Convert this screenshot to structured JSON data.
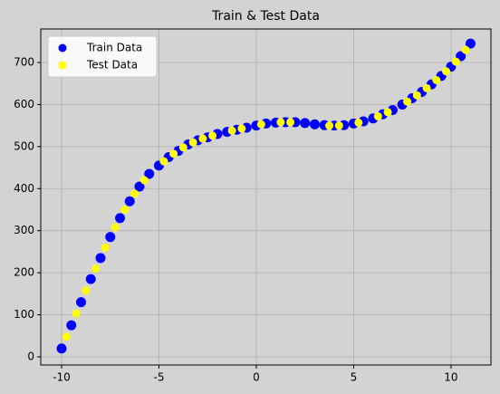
{
  "chart_data": {
    "type": "scatter",
    "title": "Train & Test Data",
    "series": [
      {
        "name": "Train Data",
        "color": "blue",
        "x": [
          -10,
          -9.5,
          -9,
          -8.5,
          -8,
          -7.5,
          -7,
          -6.5,
          -6,
          -5.5,
          -5,
          -4.5,
          -4,
          -3.5,
          -3,
          -2.5,
          -2,
          -1.5,
          -1,
          -0.5,
          0,
          0.5,
          1,
          1.5,
          2,
          2.5,
          3,
          3.5,
          4,
          4.5,
          5,
          5.5,
          6,
          6.5,
          7,
          7.5,
          8,
          8.5,
          9,
          9.5,
          10,
          10.5,
          11
        ],
        "values": [
          20,
          75,
          130,
          185,
          235,
          285,
          330,
          370,
          405,
          435,
          455,
          475,
          490,
          505,
          515,
          522,
          530,
          535,
          540,
          545,
          550,
          555,
          557,
          558,
          558,
          556,
          553,
          551,
          550,
          551,
          555,
          560,
          567,
          577,
          587,
          600,
          615,
          630,
          648,
          668,
          690,
          715,
          745
        ]
      },
      {
        "name": "Test Data",
        "color": "yellow",
        "x": [
          -9.75,
          -9.25,
          -8.75,
          -8.25,
          -7.75,
          -7.25,
          -6.75,
          -6.25,
          -5.75,
          -4.75,
          -4.25,
          -3.75,
          -3.25,
          -2.75,
          -2.25,
          -1.25,
          -0.75,
          0.25,
          1.25,
          1.75,
          3.75,
          4.25,
          5.25,
          6.25,
          6.75,
          7.75,
          8.25,
          8.75,
          9.25,
          9.75,
          10.25,
          10.75
        ],
        "values": [
          48,
          103,
          158,
          210,
          260,
          308,
          350,
          388,
          420,
          465,
          483,
          498,
          510,
          519,
          526,
          538,
          543,
          553,
          558,
          558,
          550,
          550,
          557,
          572,
          582,
          607,
          622,
          639,
          658,
          679,
          702,
          730
        ]
      }
    ],
    "xlim": [
      -11.07,
      12.05
    ],
    "xticks": [
      -10,
      -5,
      0,
      5,
      10
    ],
    "ylim": [
      -19.4,
      779.7
    ],
    "yticks": [
      0,
      100,
      200,
      300,
      400,
      500,
      600,
      700
    ],
    "grid": true,
    "legend": "upper left"
  }
}
